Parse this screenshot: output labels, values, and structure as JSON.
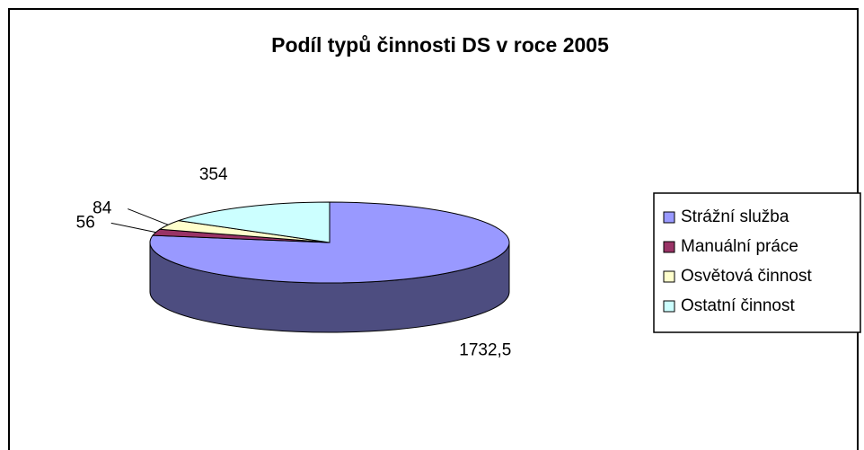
{
  "chart_data": {
    "type": "pie3d",
    "title": "Podíl typů činnosti DS v roce 2005",
    "categories": [
      "Strážní služba",
      "Manuální práce",
      "Osvětová činnost",
      "Ostatní činnost"
    ],
    "values": [
      1732.5,
      56,
      84,
      354
    ],
    "value_labels": [
      "1732,5",
      "56",
      "84",
      "354"
    ],
    "colors": [
      "#9999ff",
      "#993366",
      "#ffffcc",
      "#ccffff"
    ],
    "legend": "right"
  }
}
